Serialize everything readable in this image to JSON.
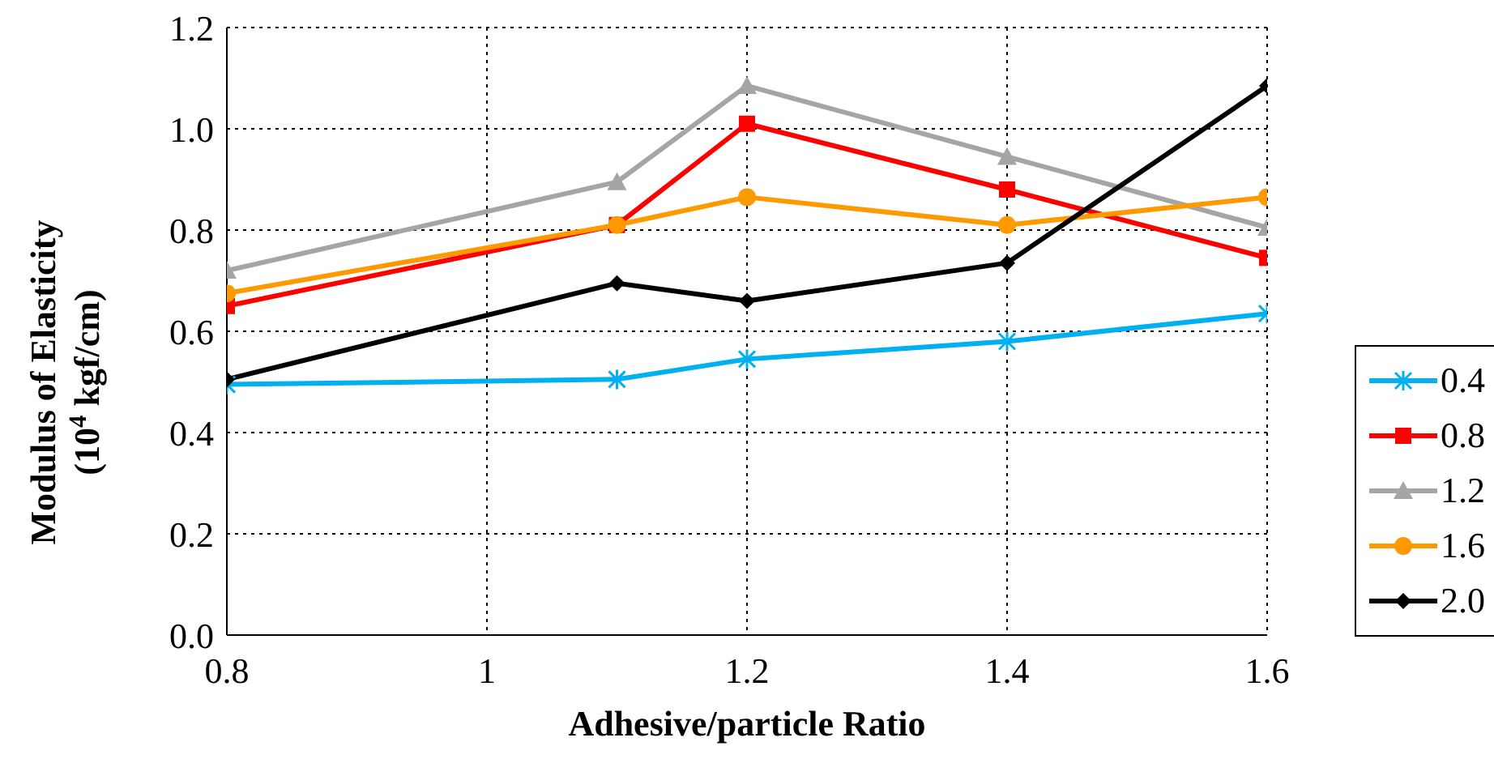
{
  "chart_data": {
    "type": "line",
    "xlabel": "Adhesive/particle Ratio",
    "ylabel": "Modulus of Elasticity\n(10$^{4}$ kgf/cm)",
    "x": [
      0.8,
      1.1,
      1.2,
      1.4,
      1.6
    ],
    "series": [
      {
        "name": "0.4",
        "color": "#00b0f0",
        "marker": "cross",
        "values": [
          0.495,
          0.505,
          0.545,
          0.58,
          0.635
        ]
      },
      {
        "name": "0.8",
        "color": "#ff0000",
        "marker": "square",
        "values": [
          0.65,
          0.81,
          1.01,
          0.88,
          0.745
        ]
      },
      {
        "name": "1.2",
        "color": "#a5a5a5",
        "marker": "triangle",
        "values": [
          0.72,
          0.895,
          1.085,
          0.945,
          0.805
        ]
      },
      {
        "name": "1.6",
        "color": "#ff9900",
        "marker": "circle",
        "values": [
          0.675,
          0.81,
          0.865,
          0.81,
          0.865
        ]
      },
      {
        "name": "2.0",
        "color": "#000000",
        "marker": "diamond",
        "values": [
          0.505,
          0.695,
          0.66,
          0.735,
          1.085
        ]
      }
    ],
    "xlim": [
      0.8,
      1.6
    ],
    "xticks": [
      0.8,
      1,
      1.2,
      1.4,
      1.6
    ],
    "ylim": [
      0,
      1.2
    ],
    "yticks": [
      {
        "value": 0,
        "label": "0.0"
      },
      {
        "value": 0.2,
        "label": "0.2"
      },
      {
        "value": 0.4,
        "label": "0.4"
      },
      {
        "value": 0.6,
        "label": "0.6"
      },
      {
        "value": 0.8,
        "label": "0.8"
      },
      {
        "value": 1,
        "label": "1.0"
      },
      {
        "value": 1.2,
        "label": "1.2"
      }
    ],
    "grid": true,
    "legend": "right",
    "line_style": "solid"
  }
}
